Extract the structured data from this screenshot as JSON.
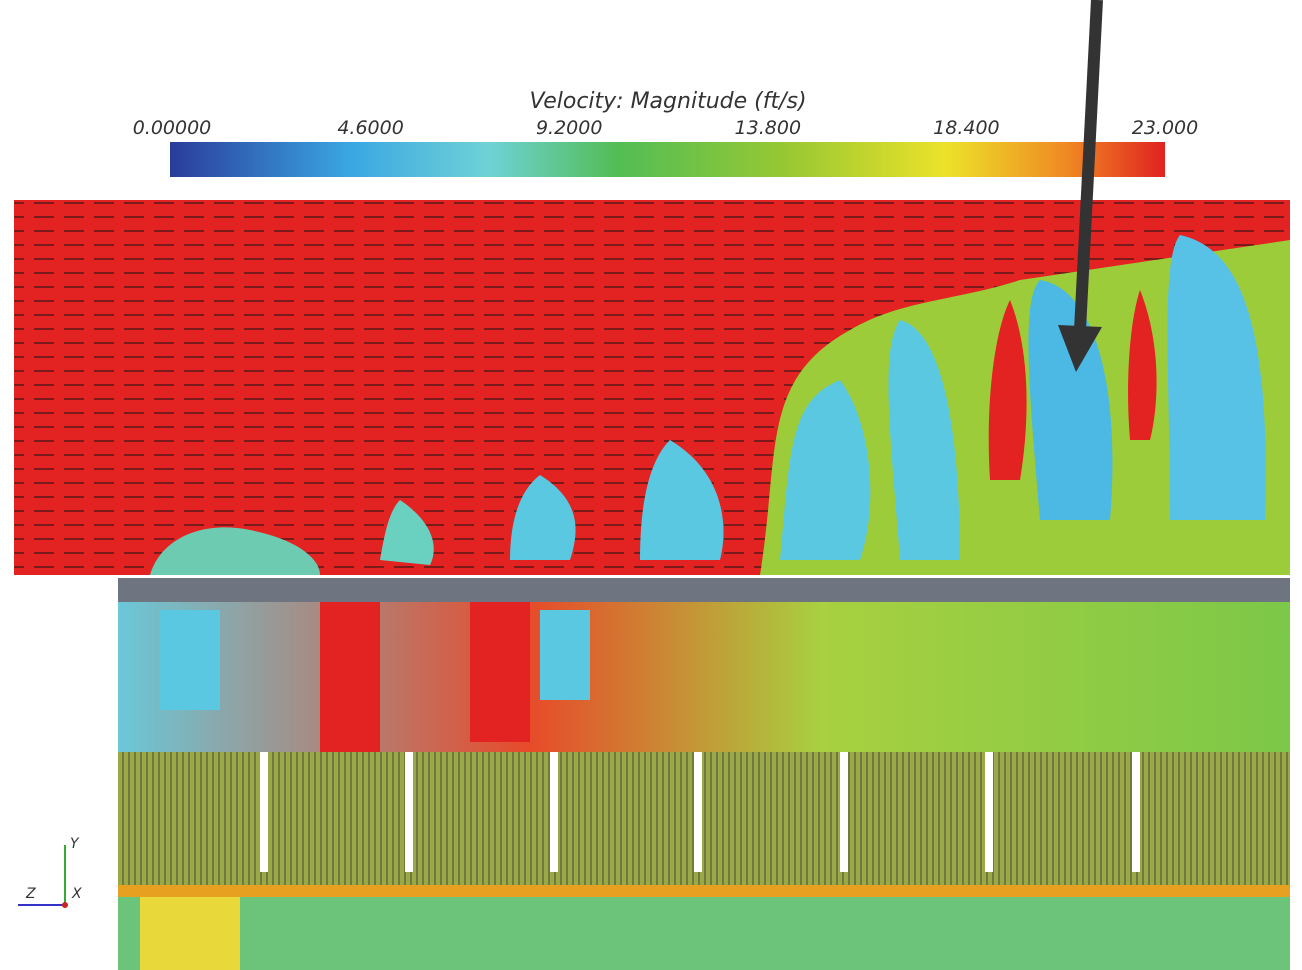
{
  "colorbar": {
    "title": "Velocity: Magnitude (ft/s)",
    "ticks": [
      "0.00000",
      "4.6000",
      "9.2000",
      "13.800",
      "18.400",
      "23.000"
    ]
  },
  "axes": {
    "y": "Y",
    "z": "Z",
    "x": "X"
  }
}
